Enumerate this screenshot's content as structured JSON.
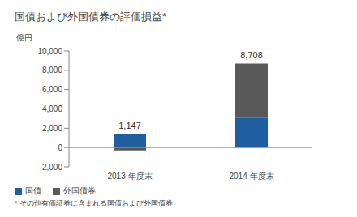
{
  "chart_data": {
    "type": "bar",
    "title": "国債および外国債券の評価損益*",
    "y_label": "億円",
    "categories": [
      "2013 年度末",
      "2014 年度末"
    ],
    "series": [
      {
        "name": "国債",
        "color": "#1f5fa0",
        "values": [
          1447,
          3100
        ]
      },
      {
        "name": "外国債券",
        "color": "#595959",
        "values": [
          -300,
          5608
        ]
      }
    ],
    "stacked": true,
    "totals": [
      1147,
      8708
    ],
    "total_labels": [
      "1,147",
      "8,708"
    ],
    "ylim": [
      -2000,
      10000
    ],
    "yticks": [
      {
        "value": -2000,
        "label": "-2,000"
      },
      0,
      {
        "value": 2000,
        "label": "2,000"
      },
      {
        "value": 4000,
        "label": "4,000"
      },
      {
        "value": 6000,
        "label": "6,000"
      },
      {
        "value": 8000,
        "label": "8,000"
      },
      {
        "value": 10000,
        "label": "10,000"
      }
    ],
    "grid": false,
    "annotations": [
      "* その他有価証券に含まれる国債および外国債券"
    ]
  }
}
